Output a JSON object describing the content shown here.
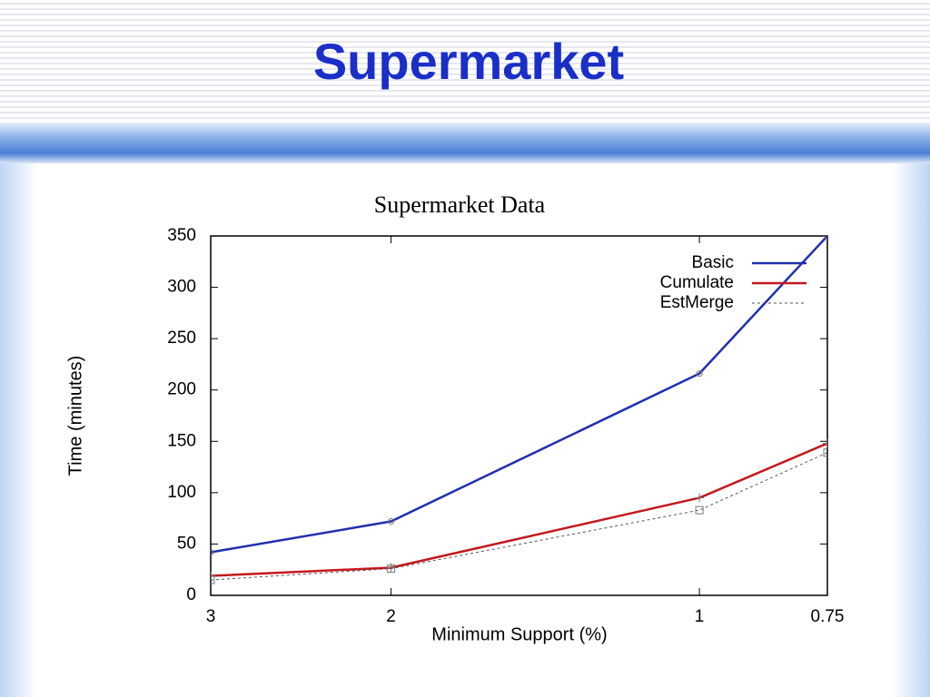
{
  "slide": {
    "title": "Supermarket"
  },
  "chart_data": {
    "type": "line",
    "title": "Supermarket Data",
    "xlabel": "Minimum Support (%)",
    "ylabel": "Time (minutes)",
    "x": [
      3,
      2,
      1,
      0.75
    ],
    "xscale": "log",
    "xlim": [
      3,
      0.75
    ],
    "xticks": [
      3,
      2,
      1,
      0.75
    ],
    "ylim": [
      0,
      350
    ],
    "yticks": [
      0,
      50,
      100,
      150,
      200,
      250,
      300,
      350
    ],
    "legend": "upper right",
    "series": [
      {
        "name": "Basic",
        "color": "#1f2fb0",
        "values": [
          42,
          72,
          216,
          350
        ]
      },
      {
        "name": "Cumulate",
        "color": "#c4181c",
        "values": [
          19,
          27,
          95,
          148
        ]
      },
      {
        "name": "EstMerge",
        "color": "#555555",
        "values": [
          15,
          26,
          83,
          139
        ]
      }
    ]
  }
}
